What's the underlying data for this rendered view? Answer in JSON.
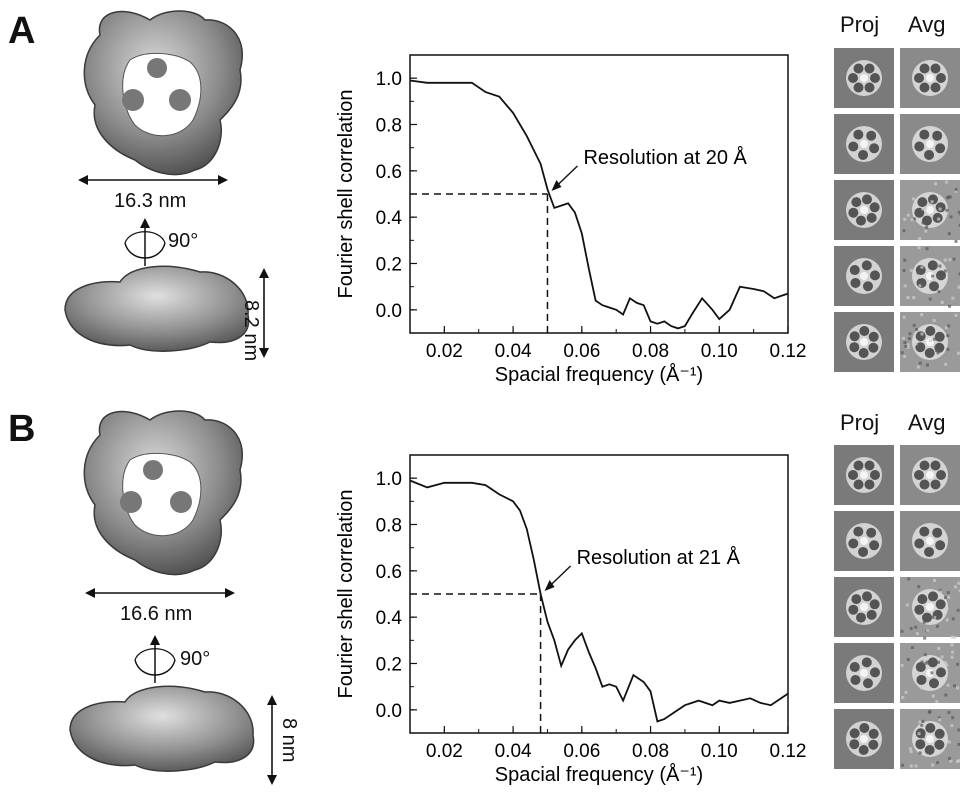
{
  "panels": [
    {
      "letter": "A",
      "width_label": "16.3 nm",
      "rotation_label": "90°",
      "height_label": "8.2 nm",
      "proj_label": "Proj",
      "avg_label": "Avg",
      "annotation": "Resolution at 20 Å",
      "chart_data": {
        "type": "line",
        "xlabel": "Spacial frequency (Å⁻¹)",
        "ylabel": "Fourier shell correlation",
        "xlim": [
          0.01,
          0.12
        ],
        "ylim": [
          -0.1,
          1.1
        ],
        "xticks": [
          "0.02",
          "0.04",
          "0.06",
          "0.08",
          "0.10",
          "0.12"
        ],
        "yticks": [
          "0.0",
          "0.2",
          "0.4",
          "0.6",
          "0.8",
          "1.0"
        ],
        "threshold": 0.5,
        "resolution_x": 0.05,
        "x": [
          0.01,
          0.015,
          0.02,
          0.025,
          0.028,
          0.032,
          0.036,
          0.04,
          0.044,
          0.048,
          0.05,
          0.052,
          0.054,
          0.056,
          0.058,
          0.06,
          0.062,
          0.064,
          0.066,
          0.068,
          0.07,
          0.072,
          0.074,
          0.076,
          0.078,
          0.08,
          0.082,
          0.084,
          0.086,
          0.088,
          0.09,
          0.092,
          0.095,
          0.098,
          0.1,
          0.103,
          0.106,
          0.11,
          0.113,
          0.116,
          0.118,
          0.12
        ],
        "y": [
          0.99,
          0.98,
          0.98,
          0.98,
          0.98,
          0.94,
          0.92,
          0.85,
          0.75,
          0.63,
          0.52,
          0.44,
          0.45,
          0.46,
          0.42,
          0.33,
          0.18,
          0.04,
          0.02,
          0.01,
          0.0,
          -0.02,
          0.05,
          0.03,
          0.02,
          -0.05,
          -0.06,
          -0.05,
          -0.07,
          -0.08,
          -0.07,
          -0.02,
          0.05,
          0.0,
          -0.04,
          0.0,
          0.1,
          0.09,
          0.08,
          0.05,
          0.06,
          0.07
        ]
      },
      "proj_tiles": 5,
      "avg_tiles": 5
    },
    {
      "letter": "B",
      "width_label": "16.6 nm",
      "rotation_label": "90°",
      "height_label": "8 nm",
      "proj_label": "Proj",
      "avg_label": "Avg",
      "annotation": "Resolution at 21 Å",
      "chart_data": {
        "type": "line",
        "xlabel": "Spacial frequency (Å⁻¹)",
        "ylabel": "Fourier shell correlation",
        "xlim": [
          0.01,
          0.12
        ],
        "ylim": [
          -0.1,
          1.1
        ],
        "xticks": [
          "0.02",
          "0.04",
          "0.06",
          "0.08",
          "0.10",
          "0.12"
        ],
        "yticks": [
          "0.0",
          "0.2",
          "0.4",
          "0.6",
          "0.8",
          "1.0"
        ],
        "threshold": 0.5,
        "resolution_x": 0.048,
        "x": [
          0.01,
          0.015,
          0.02,
          0.025,
          0.028,
          0.032,
          0.036,
          0.04,
          0.042,
          0.044,
          0.046,
          0.048,
          0.05,
          0.052,
          0.054,
          0.056,
          0.058,
          0.06,
          0.062,
          0.064,
          0.066,
          0.068,
          0.07,
          0.072,
          0.075,
          0.078,
          0.08,
          0.082,
          0.084,
          0.087,
          0.09,
          0.094,
          0.098,
          0.1,
          0.103,
          0.106,
          0.109,
          0.112,
          0.115,
          0.118,
          0.12
        ],
        "y": [
          0.99,
          0.96,
          0.98,
          0.98,
          0.98,
          0.97,
          0.93,
          0.9,
          0.86,
          0.78,
          0.65,
          0.5,
          0.38,
          0.3,
          0.19,
          0.26,
          0.3,
          0.33,
          0.25,
          0.18,
          0.1,
          0.11,
          0.1,
          0.04,
          0.15,
          0.12,
          0.08,
          -0.05,
          -0.04,
          -0.01,
          0.02,
          0.04,
          0.02,
          0.04,
          0.03,
          0.04,
          0.05,
          0.03,
          0.02,
          0.05,
          0.07
        ]
      },
      "proj_tiles": 5,
      "avg_tiles": 5
    }
  ]
}
